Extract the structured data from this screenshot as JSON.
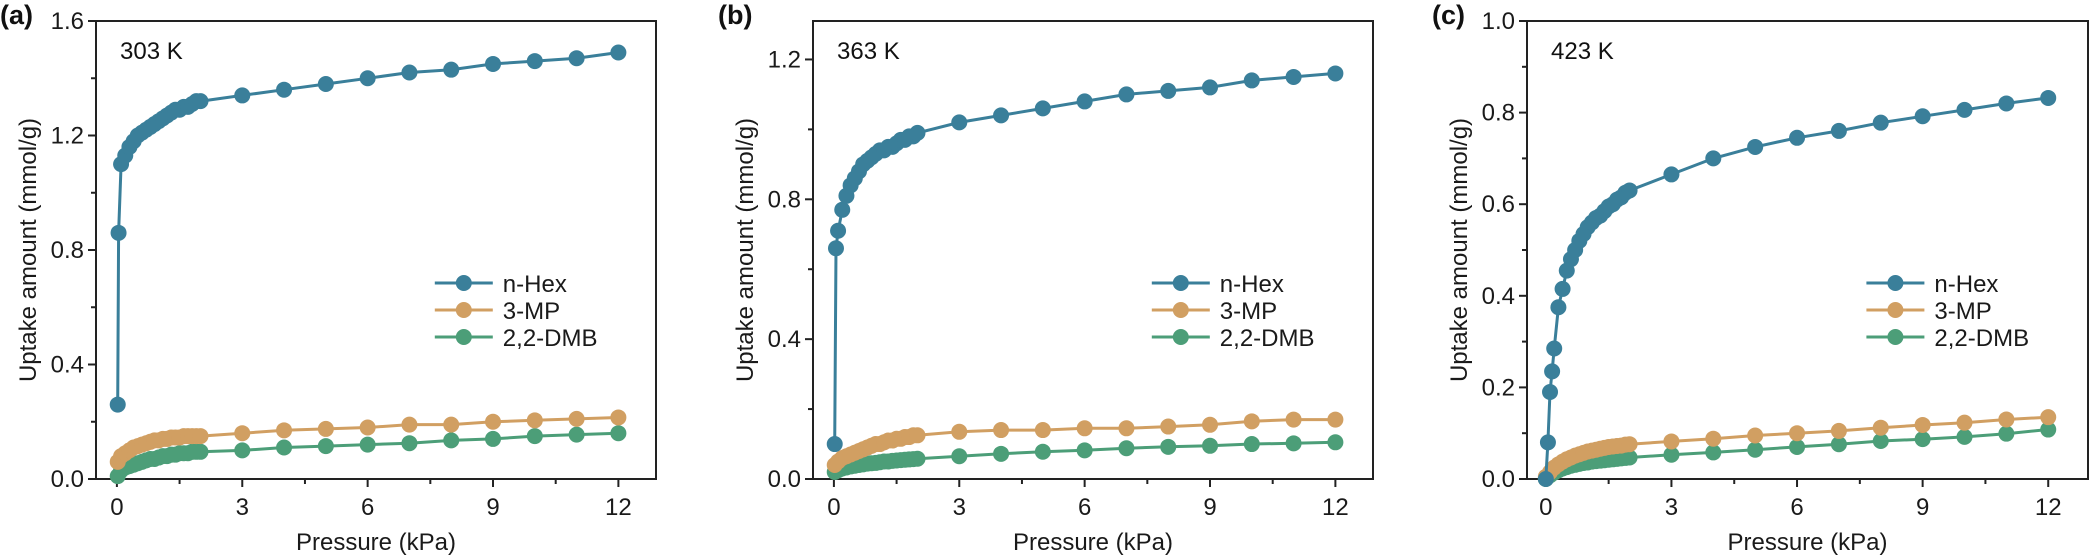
{
  "chart_data": [
    {
      "type": "line",
      "panel_label": "(a)",
      "annotation": "303 K",
      "xlabel": "Pressure (kPa)",
      "ylabel": "Uptake amount (mmol/g)",
      "xlim": [
        -0.5,
        12.9
      ],
      "ylim": [
        0,
        1.6
      ],
      "xticks": [
        0,
        3,
        6,
        9,
        12
      ],
      "xtick_labels": [
        "0",
        "3",
        "6",
        "9",
        "12"
      ],
      "yticks": [
        0,
        0.4,
        0.8,
        1.2,
        1.6
      ],
      "ytick_labels": [
        "0.0",
        "0.4",
        "0.8",
        "1.2",
        "1.6"
      ],
      "legend": "center-right",
      "series": [
        {
          "name": "n-Hex",
          "color": "#3a7f9a",
          "x": [
            0.02,
            0.04,
            0.1,
            0.2,
            0.3,
            0.4,
            0.5,
            0.6,
            0.7,
            0.8,
            0.9,
            1.0,
            1.1,
            1.2,
            1.3,
            1.4,
            1.5,
            1.6,
            1.7,
            1.8,
            1.9,
            2.0,
            3.0,
            4.0,
            5.0,
            6.0,
            7.0,
            8.0,
            9.0,
            10.0,
            11.0,
            12.0
          ],
          "y": [
            0.26,
            0.86,
            1.1,
            1.13,
            1.16,
            1.18,
            1.2,
            1.21,
            1.22,
            1.23,
            1.24,
            1.25,
            1.26,
            1.27,
            1.28,
            1.29,
            1.29,
            1.3,
            1.3,
            1.31,
            1.32,
            1.32,
            1.34,
            1.36,
            1.38,
            1.4,
            1.42,
            1.43,
            1.45,
            1.46,
            1.47,
            1.49
          ]
        },
        {
          "name": "3-MP",
          "color": "#d19f62",
          "x": [
            0.02,
            0.1,
            0.2,
            0.3,
            0.4,
            0.5,
            0.6,
            0.7,
            0.8,
            0.9,
            1.0,
            1.1,
            1.2,
            1.3,
            1.4,
            1.5,
            1.6,
            1.7,
            1.8,
            1.9,
            2.0,
            3.0,
            4.0,
            5.0,
            6.0,
            7.0,
            8.0,
            9.0,
            10.0,
            11.0,
            12.0
          ],
          "y": [
            0.06,
            0.08,
            0.09,
            0.1,
            0.11,
            0.115,
            0.12,
            0.125,
            0.13,
            0.135,
            0.135,
            0.14,
            0.14,
            0.145,
            0.145,
            0.145,
            0.15,
            0.15,
            0.15,
            0.15,
            0.15,
            0.16,
            0.17,
            0.175,
            0.18,
            0.19,
            0.19,
            0.2,
            0.205,
            0.21,
            0.215
          ]
        },
        {
          "name": "2,2-DMB",
          "color": "#4c9e78",
          "x": [
            0.02,
            0.1,
            0.2,
            0.3,
            0.4,
            0.5,
            0.6,
            0.7,
            0.8,
            0.9,
            1.0,
            1.1,
            1.2,
            1.3,
            1.4,
            1.5,
            1.6,
            1.7,
            1.8,
            1.9,
            2.0,
            3.0,
            4.0,
            5.0,
            6.0,
            7.0,
            8.0,
            9.0,
            10.0,
            11.0,
            12.0
          ],
          "y": [
            0.01,
            0.03,
            0.04,
            0.045,
            0.05,
            0.055,
            0.06,
            0.065,
            0.07,
            0.07,
            0.075,
            0.08,
            0.08,
            0.085,
            0.085,
            0.09,
            0.09,
            0.09,
            0.095,
            0.095,
            0.095,
            0.1,
            0.11,
            0.115,
            0.12,
            0.125,
            0.135,
            0.14,
            0.15,
            0.155,
            0.16
          ]
        }
      ]
    },
    {
      "type": "line",
      "panel_label": "(b)",
      "annotation": "363 K",
      "xlabel": "Pressure (kPa)",
      "ylabel": "Uptake amount (mmol/g)",
      "xlim": [
        -0.5,
        12.9
      ],
      "ylim": [
        0,
        1.31
      ],
      "xticks": [
        0,
        3,
        6,
        9,
        12
      ],
      "xtick_labels": [
        "0",
        "3",
        "6",
        "9",
        "12"
      ],
      "yticks": [
        0,
        0.4,
        0.8,
        1.2
      ],
      "ytick_labels": [
        "0.0",
        "0.4",
        "0.8",
        "1.2"
      ],
      "legend": "center-right",
      "series": [
        {
          "name": "n-Hex",
          "color": "#3a7f9a",
          "x": [
            0.02,
            0.05,
            0.1,
            0.2,
            0.3,
            0.4,
            0.5,
            0.6,
            0.7,
            0.8,
            0.9,
            1.0,
            1.1,
            1.2,
            1.3,
            1.4,
            1.5,
            1.6,
            1.7,
            1.8,
            1.9,
            2.0,
            3.0,
            4.0,
            5.0,
            6.0,
            7.0,
            8.0,
            9.0,
            10.0,
            11.0,
            12.0
          ],
          "y": [
            0.1,
            0.66,
            0.71,
            0.77,
            0.81,
            0.84,
            0.86,
            0.88,
            0.9,
            0.91,
            0.92,
            0.93,
            0.94,
            0.94,
            0.95,
            0.95,
            0.96,
            0.97,
            0.97,
            0.98,
            0.98,
            0.99,
            1.02,
            1.04,
            1.06,
            1.08,
            1.1,
            1.11,
            1.12,
            1.14,
            1.15,
            1.16
          ]
        },
        {
          "name": "3-MP",
          "color": "#d19f62",
          "x": [
            0.02,
            0.1,
            0.2,
            0.3,
            0.4,
            0.5,
            0.6,
            0.7,
            0.8,
            0.9,
            1.0,
            1.1,
            1.2,
            1.3,
            1.4,
            1.5,
            1.6,
            1.7,
            1.8,
            1.9,
            2.0,
            3.0,
            4.0,
            5.0,
            6.0,
            7.0,
            8.0,
            9.0,
            10.0,
            11.0,
            12.0
          ],
          "y": [
            0.04,
            0.05,
            0.06,
            0.065,
            0.07,
            0.075,
            0.08,
            0.085,
            0.09,
            0.095,
            0.1,
            0.1,
            0.105,
            0.11,
            0.11,
            0.115,
            0.115,
            0.12,
            0.12,
            0.125,
            0.125,
            0.135,
            0.14,
            0.14,
            0.145,
            0.145,
            0.15,
            0.155,
            0.165,
            0.17,
            0.17
          ]
        },
        {
          "name": "2,2-DMB",
          "color": "#4c9e78",
          "x": [
            0.02,
            0.1,
            0.2,
            0.3,
            0.4,
            0.5,
            0.6,
            0.7,
            0.8,
            0.9,
            1.0,
            1.1,
            1.2,
            1.3,
            1.4,
            1.5,
            1.6,
            1.7,
            1.8,
            1.9,
            2.0,
            3.0,
            4.0,
            5.0,
            6.0,
            7.0,
            8.0,
            9.0,
            10.0,
            11.0,
            12.0
          ],
          "y": [
            0.02,
            0.025,
            0.03,
            0.033,
            0.036,
            0.038,
            0.04,
            0.042,
            0.044,
            0.045,
            0.046,
            0.048,
            0.05,
            0.05,
            0.052,
            0.053,
            0.054,
            0.055,
            0.056,
            0.057,
            0.058,
            0.065,
            0.072,
            0.078,
            0.082,
            0.088,
            0.092,
            0.095,
            0.1,
            0.102,
            0.105
          ]
        }
      ]
    },
    {
      "type": "line",
      "panel_label": "(c)",
      "annotation": "423 K",
      "xlabel": "Pressure (kPa)",
      "ylabel": "Uptake amount (mmol/g)",
      "xlim": [
        -0.45,
        12.95
      ],
      "ylim": [
        0,
        1.0
      ],
      "xticks": [
        0,
        3,
        6,
        9,
        12
      ],
      "xtick_labels": [
        "0",
        "3",
        "6",
        "9",
        "12"
      ],
      "yticks": [
        0,
        0.2,
        0.4,
        0.6,
        0.8,
        1.0
      ],
      "ytick_labels": [
        "0.0",
        "0.2",
        "0.4",
        "0.6",
        "0.8",
        "1.0"
      ],
      "legend": "center-right",
      "series": [
        {
          "name": "n-Hex",
          "color": "#3a7f9a",
          "x": [
            0.0,
            0.05,
            0.1,
            0.15,
            0.2,
            0.3,
            0.4,
            0.5,
            0.6,
            0.7,
            0.8,
            0.9,
            1.0,
            1.1,
            1.2,
            1.3,
            1.4,
            1.5,
            1.6,
            1.7,
            1.8,
            1.9,
            2.0,
            3.0,
            4.0,
            5.0,
            6.0,
            7.0,
            8.0,
            9.0,
            10.0,
            11.0,
            12.0
          ],
          "y": [
            0.0,
            0.08,
            0.19,
            0.235,
            0.285,
            0.375,
            0.415,
            0.455,
            0.48,
            0.5,
            0.52,
            0.535,
            0.55,
            0.56,
            0.57,
            0.575,
            0.585,
            0.595,
            0.6,
            0.61,
            0.615,
            0.625,
            0.63,
            0.665,
            0.7,
            0.725,
            0.745,
            0.76,
            0.778,
            0.792,
            0.806,
            0.82,
            0.832
          ]
        },
        {
          "name": "3-MP",
          "color": "#d19f62",
          "x": [
            0.0,
            0.1,
            0.2,
            0.3,
            0.4,
            0.5,
            0.6,
            0.7,
            0.8,
            0.9,
            1.0,
            1.1,
            1.2,
            1.3,
            1.4,
            1.5,
            1.6,
            1.7,
            1.8,
            1.9,
            2.0,
            3.0,
            4.0,
            5.0,
            6.0,
            7.0,
            8.0,
            9.0,
            10.0,
            11.0,
            12.0
          ],
          "y": [
            0.005,
            0.015,
            0.025,
            0.032,
            0.038,
            0.043,
            0.047,
            0.051,
            0.054,
            0.057,
            0.06,
            0.062,
            0.064,
            0.066,
            0.068,
            0.07,
            0.071,
            0.072,
            0.073,
            0.075,
            0.076,
            0.082,
            0.088,
            0.095,
            0.1,
            0.105,
            0.112,
            0.118,
            0.123,
            0.13,
            0.135
          ]
        },
        {
          "name": "2,2-DMB",
          "color": "#4c9e78",
          "x": [
            0.0,
            0.1,
            0.2,
            0.3,
            0.4,
            0.5,
            0.6,
            0.7,
            0.8,
            0.9,
            1.0,
            1.1,
            1.2,
            1.3,
            1.4,
            1.5,
            1.6,
            1.7,
            1.8,
            1.9,
            2.0,
            3.0,
            4.0,
            5.0,
            6.0,
            7.0,
            8.0,
            9.0,
            10.0,
            11.0,
            12.0
          ],
          "y": [
            0.0,
            0.008,
            0.014,
            0.019,
            0.023,
            0.026,
            0.029,
            0.031,
            0.033,
            0.035,
            0.036,
            0.038,
            0.039,
            0.04,
            0.041,
            0.042,
            0.043,
            0.044,
            0.045,
            0.046,
            0.047,
            0.053,
            0.058,
            0.064,
            0.07,
            0.076,
            0.083,
            0.087,
            0.092,
            0.099,
            0.108
          ]
        }
      ]
    }
  ]
}
